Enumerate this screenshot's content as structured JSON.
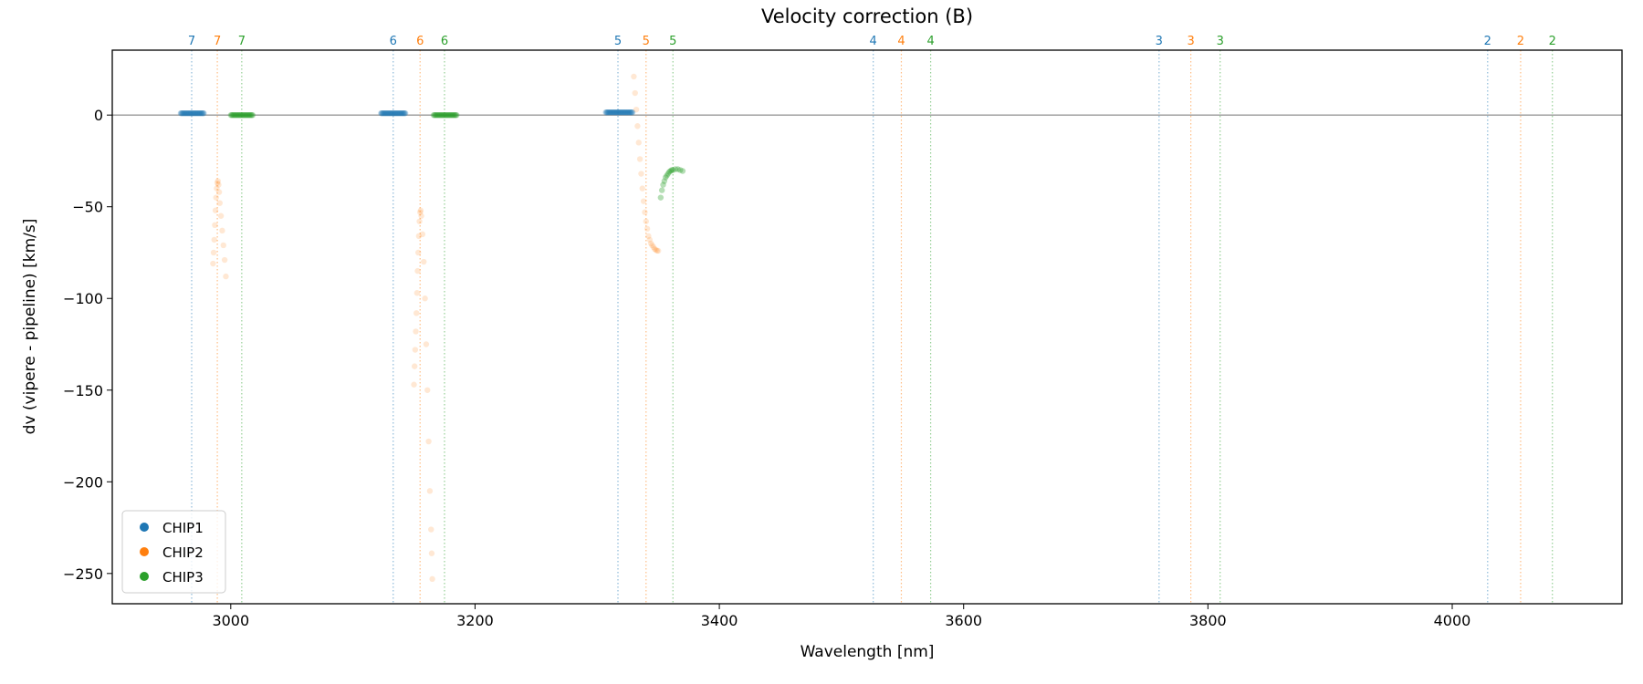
{
  "chart_data": {
    "type": "scatter",
    "title": "Velocity correction (B)",
    "xlabel": "Wavelength [nm]",
    "ylabel": "dv (vipere - pipeline) [km/s]",
    "xlim": [
      2903,
      4139
    ],
    "ylim": [
      -266.5,
      35.4
    ],
    "xticks": [
      3000,
      3200,
      3400,
      3600,
      3800,
      4000
    ],
    "yticks": [
      0,
      -50,
      -100,
      -150,
      -200,
      -250
    ],
    "grid": false,
    "hline": 0,
    "legend": {
      "placement": "lower-left",
      "entries": [
        "CHIP1",
        "CHIP2",
        "CHIP3"
      ]
    },
    "colors": {
      "CHIP1": "#1f77b4",
      "CHIP2": "#ff7f0e",
      "CHIP3": "#2ca02c"
    },
    "order_markers": [
      {
        "order": "7",
        "chip": "CHIP1",
        "x": 2968
      },
      {
        "order": "7",
        "chip": "CHIP2",
        "x": 2989
      },
      {
        "order": "7",
        "chip": "CHIP3",
        "x": 3009
      },
      {
        "order": "6",
        "chip": "CHIP1",
        "x": 3133
      },
      {
        "order": "6",
        "chip": "CHIP2",
        "x": 3155
      },
      {
        "order": "6",
        "chip": "CHIP3",
        "x": 3175
      },
      {
        "order": "5",
        "chip": "CHIP1",
        "x": 3317
      },
      {
        "order": "5",
        "chip": "CHIP2",
        "x": 3340
      },
      {
        "order": "5",
        "chip": "CHIP3",
        "x": 3362
      },
      {
        "order": "4",
        "chip": "CHIP1",
        "x": 3526
      },
      {
        "order": "4",
        "chip": "CHIP2",
        "x": 3549
      },
      {
        "order": "4",
        "chip": "CHIP3",
        "x": 3573
      },
      {
        "order": "3",
        "chip": "CHIP1",
        "x": 3760
      },
      {
        "order": "3",
        "chip": "CHIP2",
        "x": 3786
      },
      {
        "order": "3",
        "chip": "CHIP3",
        "x": 3810
      },
      {
        "order": "2",
        "chip": "CHIP1",
        "x": 4029
      },
      {
        "order": "2",
        "chip": "CHIP2",
        "x": 4056
      },
      {
        "order": "2",
        "chip": "CHIP3",
        "x": 4082
      }
    ],
    "series": [
      {
        "name": "CHIP1",
        "segments": [
          {
            "x_start": 2959,
            "x_end": 2978,
            "y": 1
          },
          {
            "x_start": 3123,
            "x_end": 3143,
            "y": 1
          },
          {
            "x_start": 3307,
            "x_end": 3329,
            "y": 1.5
          }
        ],
        "points": []
      },
      {
        "name": "CHIP2",
        "segments": [],
        "points": [
          [
            2985.5,
            -81
          ],
          [
            2986,
            -75
          ],
          [
            2986.5,
            -68
          ],
          [
            2987,
            -60
          ],
          [
            2987.5,
            -52
          ],
          [
            2988,
            -45
          ],
          [
            2988.5,
            -40
          ],
          [
            2989,
            -37
          ],
          [
            2989.5,
            -36
          ],
          [
            2990,
            -38
          ],
          [
            2990.5,
            -42
          ],
          [
            2991,
            -48
          ],
          [
            2992,
            -55
          ],
          [
            2993,
            -63
          ],
          [
            2994,
            -71
          ],
          [
            2995,
            -79
          ],
          [
            2996,
            -88
          ],
          [
            3150,
            -147
          ],
          [
            3150.5,
            -137
          ],
          [
            3151,
            -128
          ],
          [
            3151.5,
            -118
          ],
          [
            3152,
            -108
          ],
          [
            3152.5,
            -97
          ],
          [
            3153,
            -85
          ],
          [
            3153.5,
            -75
          ],
          [
            3154,
            -66
          ],
          [
            3154.5,
            -58
          ],
          [
            3155,
            -53
          ],
          [
            3155.5,
            -52
          ],
          [
            3156,
            -55
          ],
          [
            3157,
            -65
          ],
          [
            3158,
            -80
          ],
          [
            3159,
            -100
          ],
          [
            3160,
            -125
          ],
          [
            3161,
            -150
          ],
          [
            3162,
            -178
          ],
          [
            3163,
            -205
          ],
          [
            3164,
            -226
          ],
          [
            3164.5,
            -239
          ],
          [
            3165,
            -253
          ],
          [
            3330,
            21
          ],
          [
            3331,
            12
          ],
          [
            3332,
            3
          ],
          [
            3333,
            -6
          ],
          [
            3334,
            -15
          ],
          [
            3335,
            -24
          ],
          [
            3336,
            -32
          ],
          [
            3337,
            -40
          ],
          [
            3338,
            -47
          ],
          [
            3339,
            -53
          ],
          [
            3340,
            -58
          ],
          [
            3341,
            -62
          ],
          [
            3342,
            -66
          ],
          [
            3343,
            -68
          ],
          [
            3344,
            -70
          ],
          [
            3345,
            -71
          ],
          [
            3346,
            -72
          ],
          [
            3347,
            -73
          ],
          [
            3348,
            -73.5
          ],
          [
            3349,
            -74
          ],
          [
            3350,
            -74
          ]
        ]
      },
      {
        "name": "CHIP3",
        "segments": [
          {
            "x_start": 3000,
            "x_end": 3018,
            "y": 0
          },
          {
            "x_start": 3166,
            "x_end": 3185,
            "y": 0
          }
        ],
        "points": [
          [
            3352,
            -45
          ],
          [
            3353,
            -41
          ],
          [
            3354,
            -38
          ],
          [
            3355,
            -36
          ],
          [
            3356,
            -34
          ],
          [
            3357,
            -33
          ],
          [
            3358,
            -32
          ],
          [
            3359,
            -31
          ],
          [
            3360,
            -30.5
          ],
          [
            3361,
            -30
          ],
          [
            3362,
            -30
          ],
          [
            3364,
            -29.5
          ],
          [
            3366,
            -29.5
          ],
          [
            3368,
            -30
          ],
          [
            3370,
            -30.5
          ]
        ]
      }
    ]
  }
}
